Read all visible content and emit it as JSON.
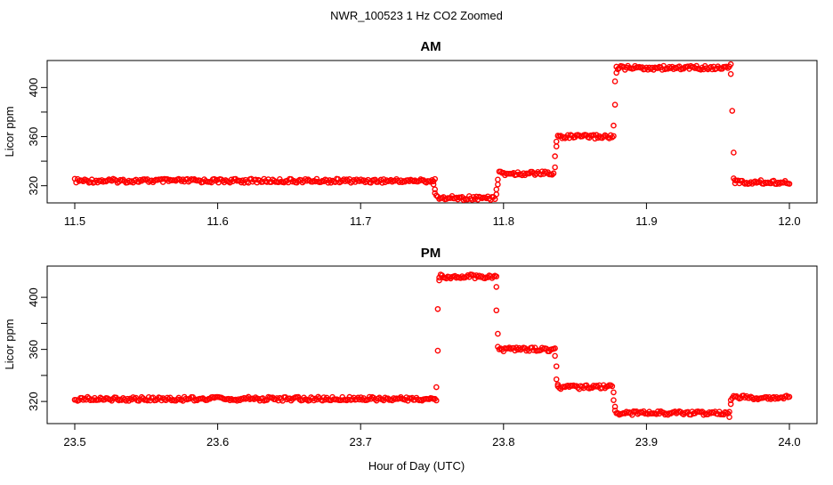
{
  "figure": {
    "title": "NWR_100523  1 Hz CO2 Zoomed",
    "xlabel": "Hour of Day (UTC)"
  },
  "colors": {
    "points": "#ff0000",
    "axes": "#000000",
    "background": "#ffffff"
  },
  "chart_data": [
    {
      "type": "scatter",
      "title": "AM",
      "xlabel": "",
      "ylabel": "Licor ppm",
      "xlim": [
        11.5,
        12.0
      ],
      "ylim": [
        306,
        422
      ],
      "x_ticks": [
        11.5,
        11.6,
        11.7,
        11.8,
        11.9,
        12.0
      ],
      "x_tick_labels": [
        "11.5",
        "11.6",
        "11.7",
        "11.8",
        "11.9",
        "12.0"
      ],
      "y_ticks": [
        320,
        340,
        360,
        380,
        400
      ],
      "y_tick_labels": [
        "320",
        "",
        "360",
        "",
        "400"
      ],
      "grid": false,
      "plateaus": [
        {
          "x_start": 11.5,
          "x_end": 11.752,
          "y": 324
        },
        {
          "x_start": 11.754,
          "x_end": 11.794,
          "y": 310
        },
        {
          "x_start": 11.797,
          "x_end": 11.835,
          "y": 330
        },
        {
          "x_start": 11.838,
          "x_end": 11.877,
          "y": 360
        },
        {
          "x_start": 11.879,
          "x_end": 11.958,
          "y": 416
        },
        {
          "x_start": 11.962,
          "x_end": 12.0,
          "y": 323
        }
      ],
      "transitions": [
        {
          "x": 11.751,
          "y": 321
        },
        {
          "x": 11.752,
          "y": 317
        },
        {
          "x": 11.752,
          "y": 314
        },
        {
          "x": 11.753,
          "y": 312
        },
        {
          "x": 11.795,
          "y": 313
        },
        {
          "x": 11.795,
          "y": 317
        },
        {
          "x": 11.796,
          "y": 321
        },
        {
          "x": 11.796,
          "y": 325
        },
        {
          "x": 11.836,
          "y": 335
        },
        {
          "x": 11.836,
          "y": 344
        },
        {
          "x": 11.837,
          "y": 352
        },
        {
          "x": 11.837,
          "y": 356
        },
        {
          "x": 11.877,
          "y": 369
        },
        {
          "x": 11.878,
          "y": 386
        },
        {
          "x": 11.878,
          "y": 405
        },
        {
          "x": 11.879,
          "y": 412
        },
        {
          "x": 11.959,
          "y": 419
        },
        {
          "x": 11.959,
          "y": 411
        },
        {
          "x": 11.96,
          "y": 381
        },
        {
          "x": 11.961,
          "y": 347
        },
        {
          "x": 11.961,
          "y": 326
        },
        {
          "x": 11.962,
          "y": 322
        }
      ]
    },
    {
      "type": "scatter",
      "title": "PM",
      "xlabel": "",
      "ylabel": "Licor ppm",
      "xlim": [
        23.5,
        24.0
      ],
      "ylim": [
        303,
        424
      ],
      "x_ticks": [
        23.5,
        23.6,
        23.7,
        23.8,
        23.9,
        24.0
      ],
      "x_tick_labels": [
        "23.5",
        "23.6",
        "23.7",
        "23.8",
        "23.9",
        "24.0"
      ],
      "y_ticks": [
        320,
        340,
        360,
        380,
        400
      ],
      "y_tick_labels": [
        "320",
        "",
        "360",
        "",
        "400"
      ],
      "grid": false,
      "plateaus": [
        {
          "x_start": 23.5,
          "x_end": 23.753,
          "y": 322
        },
        {
          "x_start": 23.755,
          "x_end": 23.795,
          "y": 416
        },
        {
          "x_start": 23.797,
          "x_end": 23.836,
          "y": 360
        },
        {
          "x_start": 23.838,
          "x_end": 23.876,
          "y": 331
        },
        {
          "x_start": 23.879,
          "x_end": 23.957,
          "y": 311
        },
        {
          "x_start": 23.96,
          "x_end": 24.0,
          "y": 323
        }
      ],
      "transitions": [
        {
          "x": 23.753,
          "y": 331
        },
        {
          "x": 23.754,
          "y": 359
        },
        {
          "x": 23.754,
          "y": 391
        },
        {
          "x": 23.755,
          "y": 413
        },
        {
          "x": 23.795,
          "y": 408
        },
        {
          "x": 23.795,
          "y": 390
        },
        {
          "x": 23.796,
          "y": 372
        },
        {
          "x": 23.796,
          "y": 362
        },
        {
          "x": 23.836,
          "y": 355
        },
        {
          "x": 23.837,
          "y": 347
        },
        {
          "x": 23.837,
          "y": 337
        },
        {
          "x": 23.838,
          "y": 333
        },
        {
          "x": 23.877,
          "y": 327
        },
        {
          "x": 23.877,
          "y": 321
        },
        {
          "x": 23.878,
          "y": 316
        },
        {
          "x": 23.878,
          "y": 313
        },
        {
          "x": 23.958,
          "y": 308
        },
        {
          "x": 23.958,
          "y": 312
        },
        {
          "x": 23.959,
          "y": 318
        },
        {
          "x": 23.959,
          "y": 321
        }
      ]
    }
  ]
}
